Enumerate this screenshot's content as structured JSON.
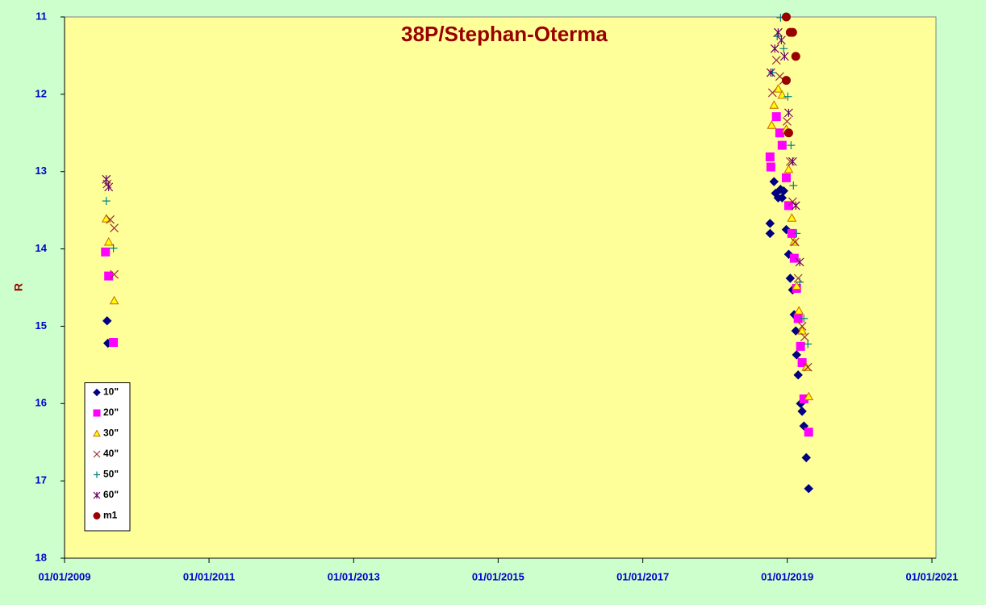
{
  "chart_data": {
    "type": "scatter",
    "title": "38P/Stephan-Oterma",
    "y_label": "R",
    "xlim": [
      "2009-01-01",
      "2021-01-01"
    ],
    "xticks": [
      {
        "value": "2009-01-01",
        "label": "01/01/2009"
      },
      {
        "value": "2011-01-01",
        "label": "01/01/2011"
      },
      {
        "value": "2013-01-01",
        "label": "01/01/2013"
      },
      {
        "value": "2015-01-01",
        "label": "01/01/2015"
      },
      {
        "value": "2017-01-01",
        "label": "01/01/2017"
      },
      {
        "value": "2019-01-01",
        "label": "01/01/2019"
      },
      {
        "value": "2021-01-01",
        "label": "01/01/2021"
      }
    ],
    "ylim": [
      11,
      18
    ],
    "y_reversed": true,
    "yticks": [
      11,
      12,
      13,
      14,
      15,
      16,
      17,
      18
    ],
    "legend": "lower left",
    "series": [
      {
        "name": "10\"",
        "marker": "diamond",
        "color": "#000080",
        "x": [
          "2009-08-04",
          "2009-08-08",
          "2018-10-06",
          "2018-10-06",
          "2018-10-26",
          "2018-11-03",
          "2018-11-16",
          "2018-11-28",
          "2018-12-06",
          "2018-12-14",
          "2018-12-27",
          "2019-01-08",
          "2019-01-16",
          "2019-01-28",
          "2019-02-05",
          "2019-02-13",
          "2019-02-17",
          "2019-02-25",
          "2019-03-09",
          "2019-03-17",
          "2019-03-26",
          "2019-04-07",
          "2019-04-19"
        ],
        "values": [
          14.93,
          15.22,
          13.67,
          13.8,
          13.13,
          13.28,
          13.34,
          13.23,
          13.34,
          13.25,
          13.75,
          14.07,
          14.38,
          14.53,
          14.85,
          15.06,
          15.37,
          15.63,
          16.0,
          16.1,
          16.29,
          16.7,
          17.1
        ]
      },
      {
        "name": "20\"",
        "marker": "square",
        "color": "#ff00ff",
        "x": [
          "2009-07-27",
          "2009-08-12",
          "2009-09-05",
          "2018-10-06",
          "2018-10-10",
          "2018-11-07",
          "2018-11-24",
          "2018-12-06",
          "2018-12-27",
          "2019-01-08",
          "2019-01-24",
          "2019-02-05",
          "2019-02-17",
          "2019-02-25",
          "2019-03-09",
          "2019-03-17",
          "2019-03-26",
          "2019-04-19"
        ],
        "values": [
          14.04,
          14.35,
          15.21,
          12.81,
          12.94,
          12.29,
          12.5,
          12.66,
          13.08,
          13.44,
          13.8,
          14.12,
          14.51,
          14.9,
          15.26,
          15.47,
          15.94,
          16.37
        ]
      },
      {
        "name": "30\"",
        "marker": "triangle",
        "color": "#ffff00",
        "stroke": "#cc6600",
        "x": [
          "2009-07-31",
          "2009-08-12",
          "2009-09-09",
          "2018-10-14",
          "2018-10-26",
          "2018-11-16",
          "2018-12-06",
          "2018-12-27",
          "2019-01-08",
          "2019-01-24",
          "2019-02-05",
          "2019-02-17",
          "2019-03-01",
          "2019-03-17",
          "2019-04-07",
          "2019-04-19"
        ],
        "values": [
          13.61,
          13.91,
          14.67,
          12.4,
          12.14,
          11.93,
          12.01,
          12.45,
          12.97,
          13.6,
          13.91,
          14.48,
          14.8,
          15.06,
          15.53,
          15.91
        ]
      },
      {
        "name": "40\"",
        "marker": "x",
        "color": "#993333",
        "x": [
          "2009-08-04",
          "2009-08-20",
          "2009-09-09",
          "2009-09-09",
          "2018-10-18",
          "2018-11-07",
          "2018-11-24",
          "2018-12-14",
          "2018-12-31",
          "2019-01-16",
          "2019-01-28",
          "2019-02-09",
          "2019-02-25",
          "2019-03-17",
          "2019-03-30",
          "2019-04-15"
        ],
        "values": [
          13.16,
          13.62,
          14.33,
          13.73,
          11.98,
          11.56,
          11.77,
          11.82,
          12.35,
          12.87,
          13.39,
          13.91,
          14.38,
          15.0,
          15.14,
          15.53
        ]
      },
      {
        "name": "50\"",
        "marker": "plus",
        "color": "#008080",
        "x": [
          "2009-07-31",
          "2009-09-05",
          "2018-10-18",
          "2018-11-11",
          "2018-11-28",
          "2018-12-14",
          "2019-01-04",
          "2019-01-20",
          "2019-02-01",
          "2019-02-17",
          "2019-03-05",
          "2019-03-26",
          "2019-04-15"
        ],
        "values": [
          13.38,
          13.99,
          11.72,
          11.25,
          11.01,
          11.41,
          12.03,
          12.66,
          13.18,
          13.8,
          14.43,
          14.9,
          15.23
        ]
      },
      {
        "name": "60\"",
        "marker": "asterisk",
        "color": "#660066",
        "x": [
          "2009-07-31",
          "2009-08-12",
          "2018-10-10",
          "2018-10-30",
          "2018-11-16",
          "2018-12-02",
          "2018-12-18",
          "2019-01-08",
          "2019-01-28",
          "2019-02-13",
          "2019-03-05"
        ],
        "values": [
          13.1,
          13.2,
          11.72,
          11.41,
          11.2,
          11.3,
          11.51,
          12.24,
          12.87,
          13.44,
          14.17
        ]
      },
      {
        "name": "m1",
        "marker": "circle",
        "color": "#990000",
        "x": [
          "2018-12-27",
          "2019-01-16",
          "2019-01-28",
          "2019-02-13",
          "2018-12-27",
          "2019-01-08"
        ],
        "values": [
          11.0,
          11.2,
          11.2,
          11.51,
          11.82,
          12.5
        ]
      }
    ]
  }
}
